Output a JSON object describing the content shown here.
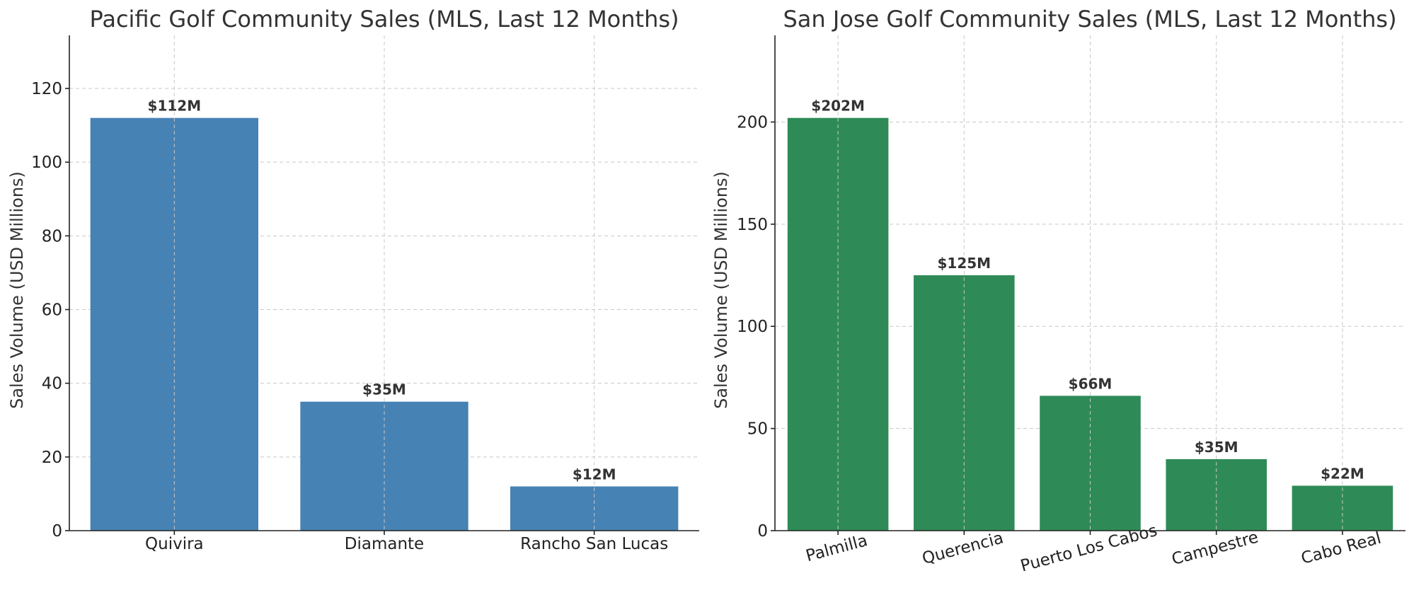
{
  "chart_data": [
    {
      "type": "bar",
      "title": "Pacific Golf Community Sales (MLS, Last 12 Months)",
      "xlabel": "",
      "ylabel": "Sales Volume (USD Millions)",
      "categories": [
        "Quivira",
        "Diamante",
        "Rancho San Lucas"
      ],
      "values": [
        112,
        35,
        12
      ],
      "data_labels": [
        "$112M",
        "$35M",
        "$12M"
      ],
      "yticks": [
        0,
        20,
        40,
        60,
        80,
        100,
        120
      ],
      "ylim": [
        0,
        134.4
      ],
      "grid": true,
      "bar_color": "#4682b4",
      "xtick_rotation": 0
    },
    {
      "type": "bar",
      "title": "San Jose Golf Community Sales (MLS, Last 12 Months)",
      "xlabel": "",
      "ylabel": "Sales Volume (USD Millions)",
      "categories": [
        "Palmilla",
        "Querencia",
        "Puerto Los Cabos",
        "Campestre",
        "Cabo Real"
      ],
      "values": [
        202,
        125,
        66,
        35,
        22
      ],
      "data_labels": [
        "$202M",
        "$125M",
        "$66M",
        "$35M",
        "$22M"
      ],
      "yticks": [
        0,
        50,
        100,
        150,
        200
      ],
      "ylim": [
        0,
        242.4
      ],
      "grid": true,
      "bar_color": "#2e8b57",
      "xtick_rotation": -15
    }
  ]
}
